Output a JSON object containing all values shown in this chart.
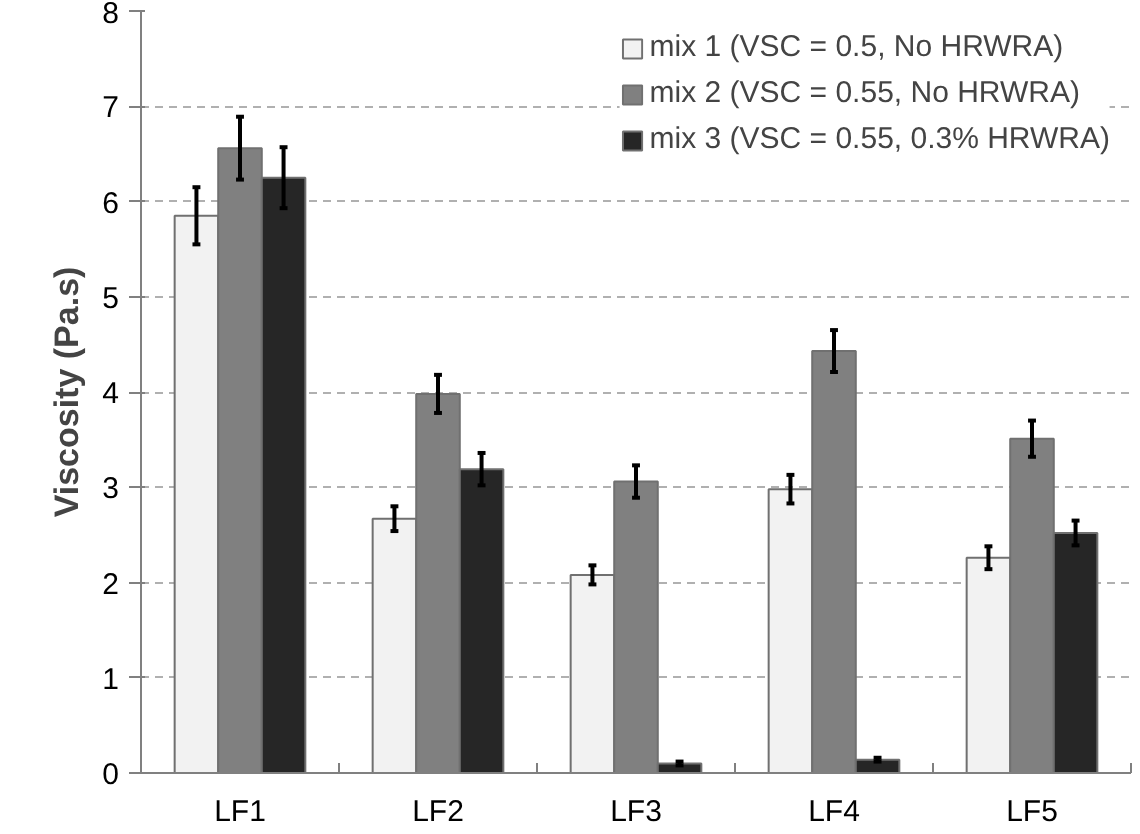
{
  "chart_data": {
    "type": "bar",
    "ylabel": "Viscosity (Pa.s)",
    "categories": [
      "LF1",
      "LF2",
      "LF3",
      "LF4",
      "LF5"
    ],
    "series": [
      {
        "name": "mix 1 (VSC = 0.5, No HRWRA)",
        "color": "#f2f2f2",
        "values": [
          5.85,
          2.67,
          2.08,
          2.98,
          2.26
        ],
        "errors": [
          0.3,
          0.13,
          0.1,
          0.15,
          0.12
        ]
      },
      {
        "name": "mix 2 (VSC = 0.55, No HRWRA)",
        "color": "#808080",
        "values": [
          6.56,
          3.98,
          3.06,
          4.43,
          3.51
        ],
        "errors": [
          0.33,
          0.2,
          0.17,
          0.22,
          0.19
        ]
      },
      {
        "name": "mix 3 (VSC = 0.55, 0.3% HRWRA)",
        "color": "#262626",
        "values": [
          6.25,
          3.19,
          0.1,
          0.14,
          2.52
        ],
        "errors": [
          0.32,
          0.17,
          0.02,
          0.02,
          0.13
        ]
      }
    ],
    "ylim": [
      0,
      8
    ],
    "yticks": [
      0,
      1,
      2,
      3,
      4,
      5,
      6,
      7,
      8
    ],
    "grid": "y",
    "legend": "top right"
  }
}
